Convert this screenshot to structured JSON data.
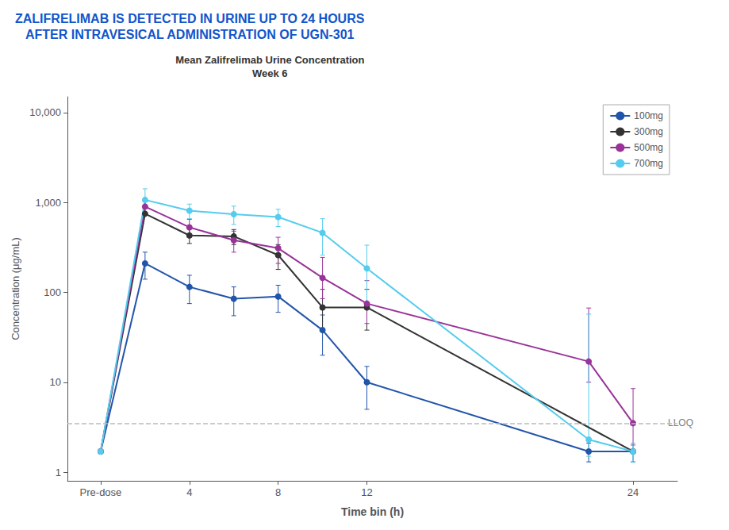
{
  "chart_data": {
    "type": "line",
    "title": "ZALIFRELIMAB IS DETECTED IN URINE UP TO 24 HOURS\nAFTER INTRAVESICAL ADMINISTRATION OF UGN-301",
    "title_color": "#1155CC",
    "subtitle": "Mean Zalifrelimab Urine Concentration\nWeek 6",
    "xlabel": "Time bin (h)",
    "ylabel": "Concentration (μg/mL)",
    "log": "y",
    "grid": false,
    "legend": "upper right",
    "xlim": [
      -1.5,
      26
    ],
    "xticks": [
      {
        "value": 0,
        "label": "Pre-dose"
      },
      4,
      8,
      12,
      24
    ],
    "ylim": [
      0.8,
      15000
    ],
    "yticks": [
      1,
      10,
      100,
      {
        "value": 1000,
        "label": "1,000"
      },
      {
        "value": 10000,
        "label": "10,000"
      }
    ],
    "annotations": [
      {
        "type": "hline",
        "y": 3.5,
        "text": "LLOQ",
        "x": 25.5,
        "color": "#BBBBBB",
        "line_style": "dashed",
        "text_color": "#555555"
      }
    ],
    "series": [
      {
        "name": "100mg",
        "color": "#2255AA",
        "marker": "circle",
        "x": [
          0,
          2,
          4,
          6,
          8,
          10,
          12,
          22,
          24
        ],
        "values": [
          1.7,
          210,
          115,
          85,
          90,
          38,
          10,
          1.7,
          1.7
        ],
        "yerr_low": [
          0.0,
          70,
          40,
          30,
          30,
          18,
          5,
          0.4,
          0.4
        ],
        "yerr_high": [
          0.0,
          70,
          40,
          30,
          30,
          18,
          5,
          0.4,
          0.4
        ]
      },
      {
        "name": "300mg",
        "color": "#333333",
        "marker": "circle",
        "x": [
          0,
          2,
          4,
          6,
          8,
          10,
          12,
          24
        ],
        "values": [
          1.7,
          750,
          430,
          420,
          260,
          68,
          68,
          1.7
        ],
        "yerr_low": [
          0.0,
          0,
          80,
          80,
          80,
          30,
          30,
          0.0
        ],
        "yerr_high": [
          0.0,
          0,
          80,
          80,
          80,
          40,
          40,
          0.0
        ]
      },
      {
        "name": "500mg",
        "color": "#993399",
        "marker": "circle",
        "x": [
          0,
          2,
          4,
          6,
          8,
          10,
          12,
          22,
          24
        ],
        "values": [
          1.7,
          900,
          530,
          380,
          310,
          145,
          75,
          17,
          3.5
        ],
        "yerr_low": [
          0.0,
          120,
          120,
          100,
          100,
          60,
          30,
          7,
          1.5
        ],
        "yerr_high": [
          0.0,
          120,
          120,
          100,
          100,
          100,
          60,
          50,
          5
        ]
      },
      {
        "name": "700mg",
        "color": "#55CCEE",
        "marker": "circle",
        "x": [
          0,
          2,
          4,
          6,
          8,
          10,
          12,
          22,
          24
        ],
        "values": [
          1.7,
          1070,
          810,
          740,
          690,
          460,
          185,
          2.3,
          1.7
        ],
        "yerr_low": [
          0.0,
          350,
          150,
          170,
          150,
          200,
          120,
          0.8,
          0.4
        ],
        "yerr_high": [
          0.0,
          350,
          150,
          170,
          150,
          200,
          150,
          55,
          0.4
        ]
      }
    ]
  }
}
